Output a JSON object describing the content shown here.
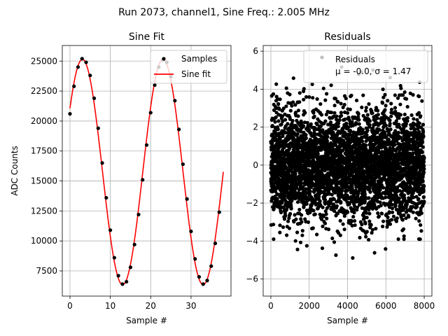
{
  "figure_title": "Run 2073, channel1, Sine Freq.: 2.005 MHz",
  "chart_data": [
    {
      "type": "line",
      "title": "Sine Fit",
      "xlabel": "Sample #",
      "ylabel": "ADC Counts",
      "xlim": [
        -1.9,
        39.9
      ],
      "ylim": [
        5400,
        26300
      ],
      "xticks": [
        0,
        10,
        20,
        30
      ],
      "yticks": [
        7500,
        10000,
        12500,
        15000,
        17500,
        20000,
        22500,
        25000
      ],
      "grid": true,
      "legend_position": "top-right",
      "series": [
        {
          "name": "Samples",
          "kind": "scatter",
          "color": "#000000",
          "x": [
            0,
            1,
            2,
            3,
            4,
            5,
            6,
            7,
            8,
            9,
            10,
            11,
            12,
            13,
            14,
            15,
            16,
            17,
            18,
            19,
            20,
            21,
            22,
            23,
            24,
            25,
            26,
            27,
            28,
            29,
            30,
            31,
            32,
            33,
            34,
            35,
            36,
            37
          ],
          "y": [
            20600,
            22900,
            24500,
            25200,
            24900,
            23800,
            21900,
            19400,
            16500,
            13600,
            10900,
            8600,
            7100,
            6400,
            6600,
            7800,
            9700,
            12200,
            15100,
            18000,
            20700,
            23000,
            24500,
            25100,
            24900,
            23700,
            21700,
            19300,
            16400,
            13500,
            10800,
            8500,
            7000,
            6400,
            6700,
            7900,
            9800,
            12400
          ]
        },
        {
          "name": "Sine fit",
          "kind": "line",
          "color": "#ff0000",
          "amplitude": 9400,
          "offset": 15750,
          "period_samples": 19.95,
          "phase_rad": 0.6,
          "x_range": [
            0,
            38
          ]
        }
      ]
    },
    {
      "type": "scatter",
      "title": "Residuals",
      "xlabel": "Sample #",
      "ylabel": "",
      "xlim": [
        -400,
        8400
      ],
      "ylim": [
        -6.9,
        6.3
      ],
      "xticks": [
        0,
        2000,
        4000,
        6000,
        8000
      ],
      "yticks": [
        -6,
        -4,
        -2,
        0,
        2,
        4,
        6
      ],
      "grid": true,
      "legend_position": "top-right",
      "series": [
        {
          "name": "Residuals",
          "color": "#000000",
          "n_points": 8000,
          "mean": -0.0,
          "std": 1.47,
          "stats_label": "μ = -0.0, σ = 1.47"
        }
      ]
    }
  ]
}
